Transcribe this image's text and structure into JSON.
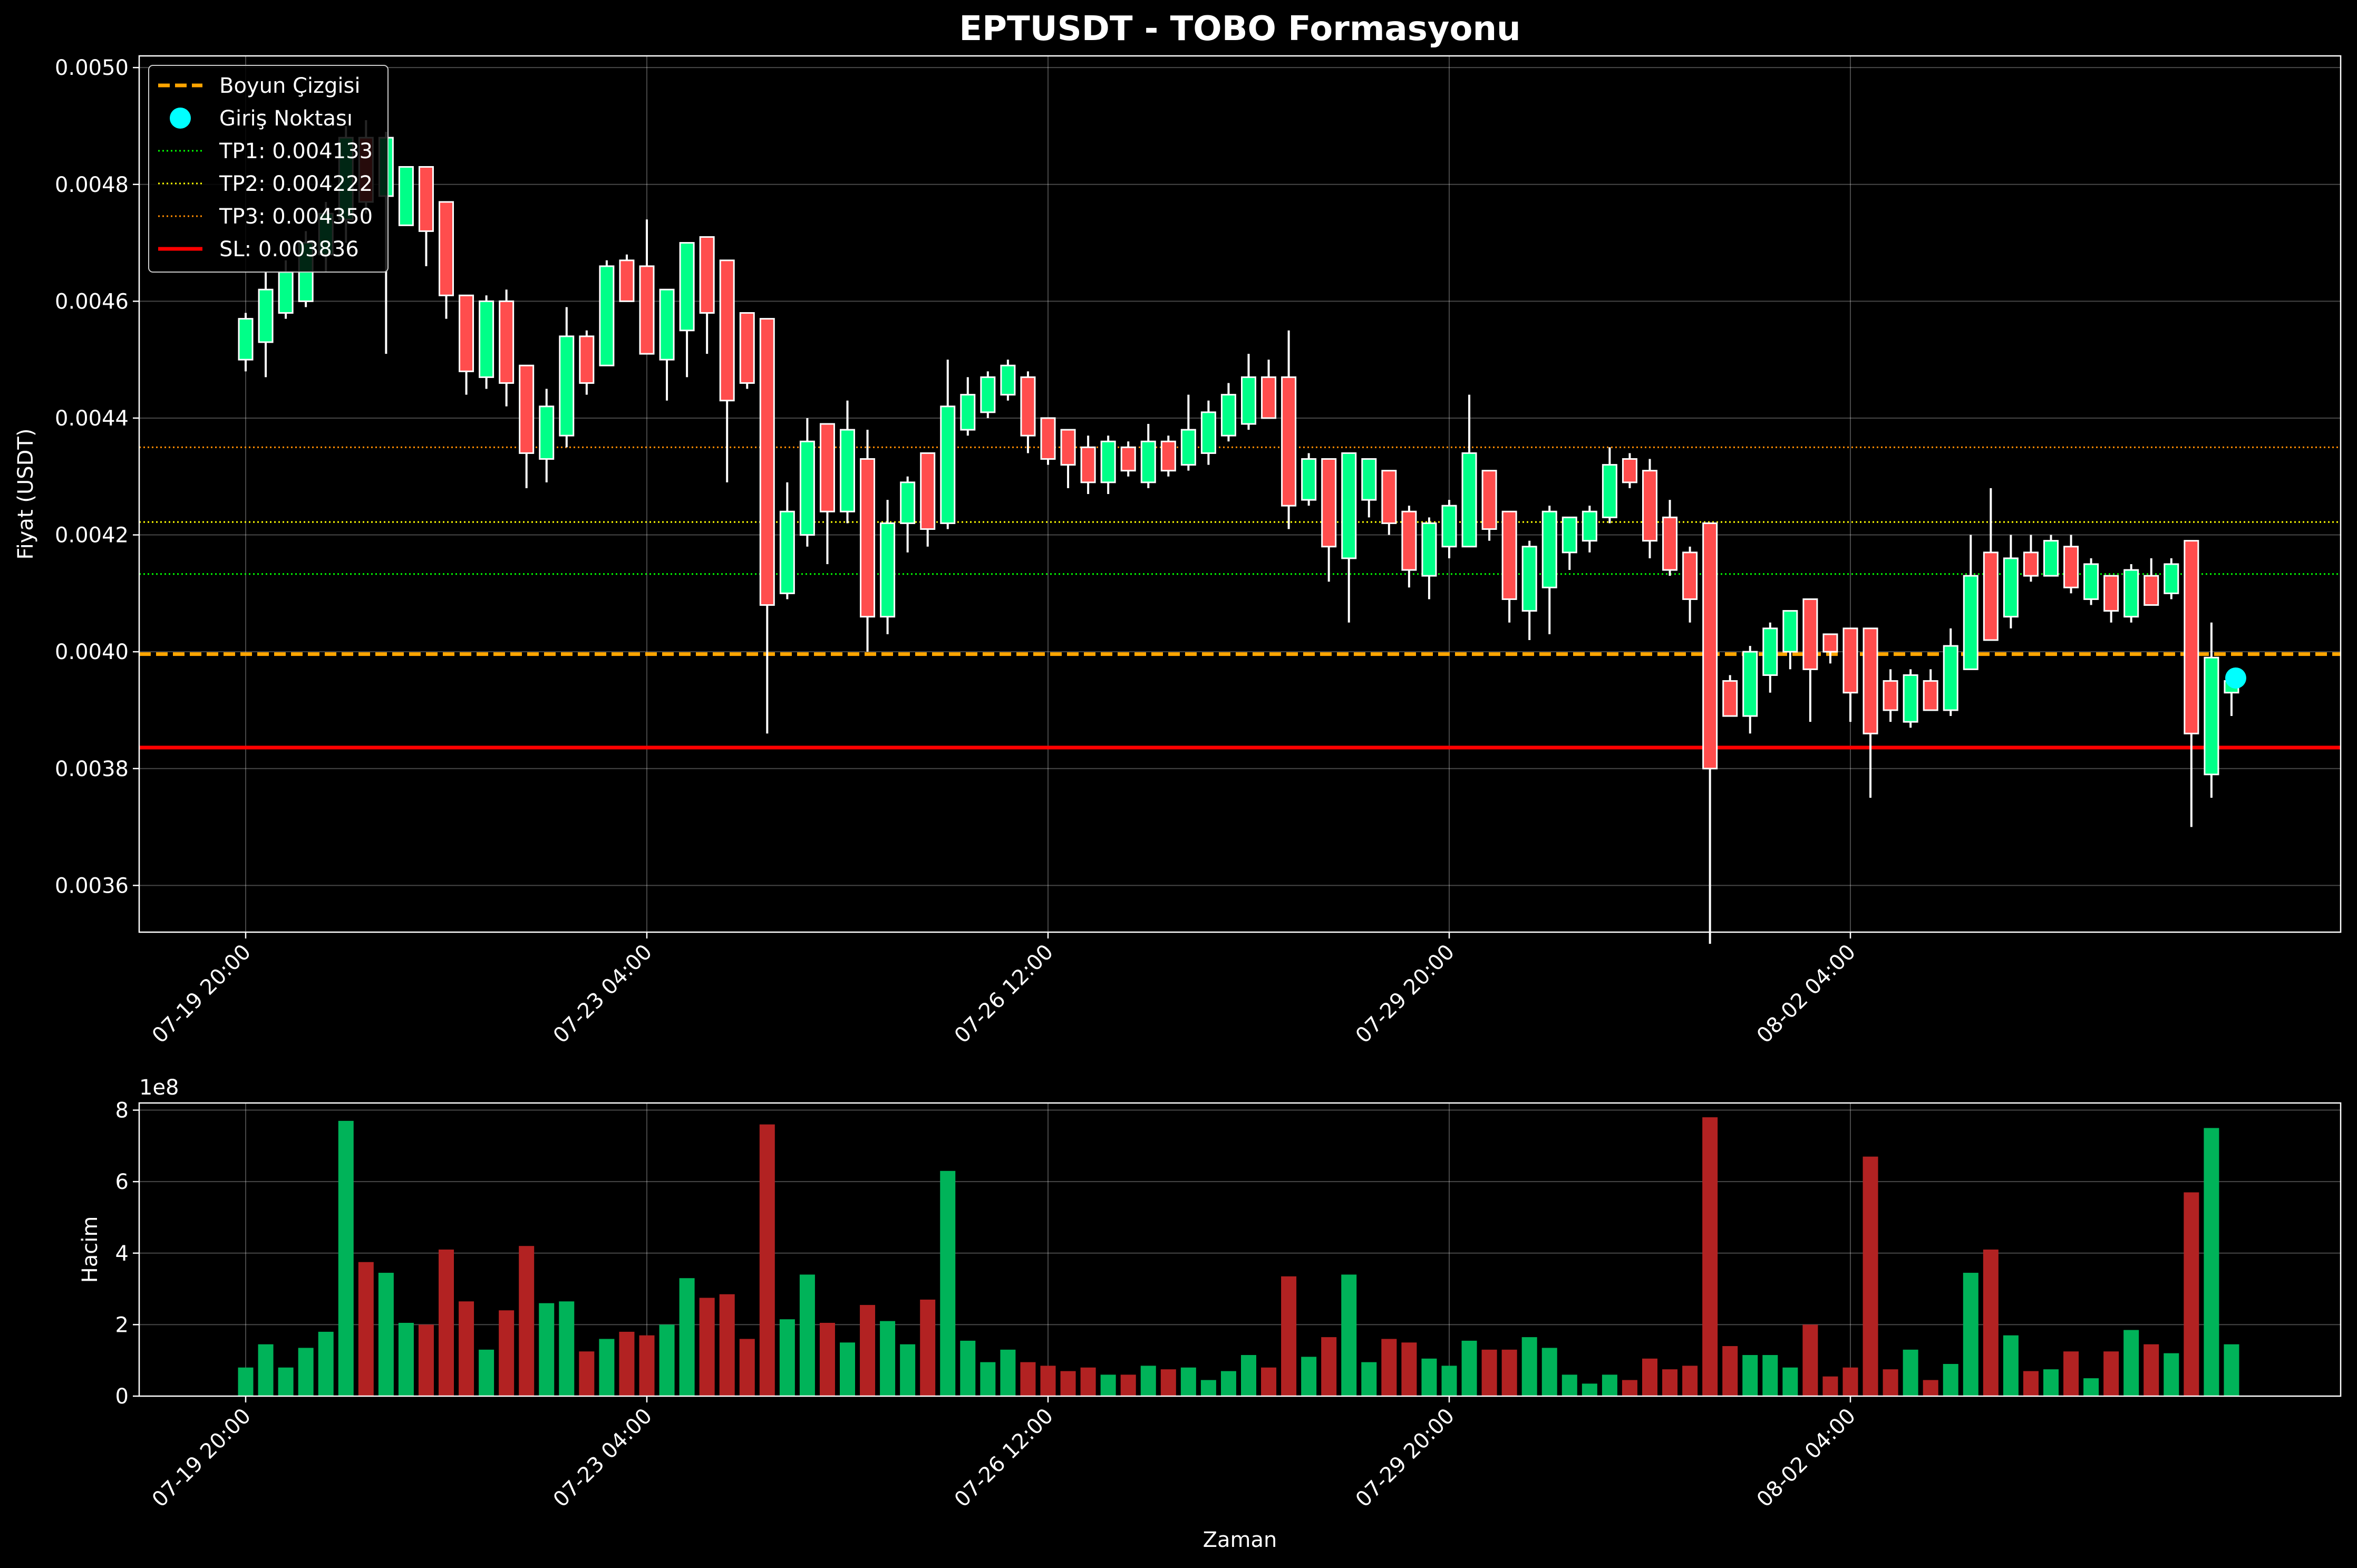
{
  "chart_data": [
    {
      "type": "candlestick",
      "title": "EPTUSDT - TOBO Formasyonu",
      "ylabel": "Fiyat (USDT)",
      "ylim": [
        0.00352,
        0.00502
      ],
      "yticks": [
        "0.0036",
        "0.0038",
        "0.0040",
        "0.0042",
        "0.0044",
        "0.0046",
        "0.0048",
        "0.0050"
      ],
      "xticks": [
        "07-19 20:00",
        "07-23 04:00",
        "07-26 12:00",
        "07-29 20:00",
        "08-02 04:00"
      ],
      "grid": true,
      "up_color": "#00ff88",
      "down_color": "#ff4d4d",
      "wick_color": "#ffffff",
      "lines": [
        {
          "name": "Boyun Çizgisi",
          "value": 0.003996,
          "style": "dashed",
          "color": "#ffa500"
        },
        {
          "name": "TP1: 0.004133",
          "value": 0.004133,
          "style": "dotted",
          "color": "#00ff00"
        },
        {
          "name": "TP2: 0.004222",
          "value": 0.004222,
          "style": "dotted",
          "color": "#ffff00"
        },
        {
          "name": "TP3: 0.004350",
          "value": 0.00435,
          "style": "dotted",
          "color": "#ff8c00"
        },
        {
          "name": "SL: 0.003836",
          "value": 0.003836,
          "style": "solid",
          "color": "#ff0000"
        }
      ],
      "entry_point": {
        "name": "Giriş Noktası",
        "index": 99,
        "value": 0.003955,
        "color": "#00ffff"
      },
      "legend_position": "upper-left",
      "candles": [
        [
          0.0045,
          0.00458,
          0.00448,
          0.00457
        ],
        [
          0.00453,
          0.00465,
          0.00447,
          0.00462
        ],
        [
          0.00458,
          0.00467,
          0.00457,
          0.00465
        ],
        [
          0.0046,
          0.00472,
          0.00459,
          0.0047
        ],
        [
          0.00468,
          0.00477,
          0.00465,
          0.00475
        ],
        [
          0.00474,
          0.0049,
          0.0047,
          0.00488
        ],
        [
          0.00488,
          0.00491,
          0.00475,
          0.00477
        ],
        [
          0.00478,
          0.00489,
          0.00451,
          0.00488
        ],
        [
          0.00473,
          0.00483,
          0.00473,
          0.00483
        ],
        [
          0.00483,
          0.00483,
          0.00466,
          0.00472
        ],
        [
          0.00477,
          0.00477,
          0.00457,
          0.00461
        ],
        [
          0.00461,
          0.00461,
          0.00444,
          0.00448
        ],
        [
          0.00447,
          0.00461,
          0.00445,
          0.0046
        ],
        [
          0.0046,
          0.00462,
          0.00442,
          0.00446
        ],
        [
          0.00449,
          0.00449,
          0.00428,
          0.00434
        ],
        [
          0.00433,
          0.00445,
          0.00429,
          0.00442
        ],
        [
          0.00437,
          0.00459,
          0.00435,
          0.00454
        ],
        [
          0.00454,
          0.00455,
          0.00444,
          0.00446
        ],
        [
          0.00449,
          0.00467,
          0.00449,
          0.00466
        ],
        [
          0.00467,
          0.00468,
          0.0046,
          0.0046
        ],
        [
          0.00466,
          0.00474,
          0.00451,
          0.00451
        ],
        [
          0.0045,
          0.00462,
          0.00443,
          0.00462
        ],
        [
          0.00455,
          0.0047,
          0.00447,
          0.0047
        ],
        [
          0.00471,
          0.00471,
          0.00451,
          0.00458
        ],
        [
          0.00467,
          0.00467,
          0.00429,
          0.00443
        ],
        [
          0.00458,
          0.00458,
          0.00445,
          0.00446
        ],
        [
          0.00457,
          0.00457,
          0.00386,
          0.00408
        ],
        [
          0.0041,
          0.00429,
          0.00409,
          0.00424
        ],
        [
          0.0042,
          0.0044,
          0.00418,
          0.00436
        ],
        [
          0.00439,
          0.00439,
          0.00415,
          0.00424
        ],
        [
          0.00424,
          0.00443,
          0.00422,
          0.00438
        ],
        [
          0.00433,
          0.00438,
          0.004,
          0.00406
        ],
        [
          0.00406,
          0.00426,
          0.00403,
          0.00422
        ],
        [
          0.00422,
          0.0043,
          0.00417,
          0.00429
        ],
        [
          0.00434,
          0.00434,
          0.00418,
          0.00421
        ],
        [
          0.00422,
          0.0045,
          0.00421,
          0.00442
        ],
        [
          0.00438,
          0.00447,
          0.00437,
          0.00444
        ],
        [
          0.00441,
          0.00448,
          0.0044,
          0.00447
        ],
        [
          0.00444,
          0.0045,
          0.00443,
          0.00449
        ],
        [
          0.00447,
          0.00448,
          0.00434,
          0.00437
        ],
        [
          0.0044,
          0.0044,
          0.00432,
          0.00433
        ],
        [
          0.00438,
          0.00438,
          0.00428,
          0.00432
        ],
        [
          0.00435,
          0.00437,
          0.00427,
          0.00429
        ],
        [
          0.00429,
          0.00437,
          0.00427,
          0.00436
        ],
        [
          0.00435,
          0.00436,
          0.0043,
          0.00431
        ],
        [
          0.00429,
          0.00439,
          0.00428,
          0.00436
        ],
        [
          0.00436,
          0.00437,
          0.0043,
          0.00431
        ],
        [
          0.00432,
          0.00444,
          0.00431,
          0.00438
        ],
        [
          0.00434,
          0.00443,
          0.00432,
          0.00441
        ],
        [
          0.00437,
          0.00446,
          0.00436,
          0.00444
        ],
        [
          0.00439,
          0.00451,
          0.00438,
          0.00447
        ],
        [
          0.00447,
          0.0045,
          0.0044,
          0.0044
        ],
        [
          0.00447,
          0.00455,
          0.00421,
          0.00425
        ],
        [
          0.00426,
          0.00434,
          0.00425,
          0.00433
        ],
        [
          0.00433,
          0.00433,
          0.00412,
          0.00418
        ],
        [
          0.00416,
          0.00434,
          0.00405,
          0.00434
        ],
        [
          0.00426,
          0.00433,
          0.00423,
          0.00433
        ],
        [
          0.00431,
          0.00431,
          0.0042,
          0.00422
        ],
        [
          0.00424,
          0.00425,
          0.00411,
          0.00414
        ],
        [
          0.00413,
          0.00423,
          0.00409,
          0.00422
        ],
        [
          0.00418,
          0.00426,
          0.00416,
          0.00425
        ],
        [
          0.00418,
          0.00444,
          0.00418,
          0.00434
        ],
        [
          0.00431,
          0.00431,
          0.00419,
          0.00421
        ],
        [
          0.00424,
          0.00424,
          0.00405,
          0.00409
        ],
        [
          0.00407,
          0.00419,
          0.00402,
          0.00418
        ],
        [
          0.00411,
          0.00425,
          0.00403,
          0.00424
        ],
        [
          0.00417,
          0.00423,
          0.00414,
          0.00423
        ],
        [
          0.00419,
          0.00425,
          0.00417,
          0.00424
        ],
        [
          0.00423,
          0.00435,
          0.00422,
          0.00432
        ],
        [
          0.00433,
          0.00434,
          0.00428,
          0.00429
        ],
        [
          0.00431,
          0.00433,
          0.00416,
          0.00419
        ],
        [
          0.00423,
          0.00426,
          0.00413,
          0.00414
        ],
        [
          0.00417,
          0.00418,
          0.00405,
          0.00409
        ],
        [
          0.00422,
          0.00422,
          0.0035,
          0.0038
        ],
        [
          0.00395,
          0.00396,
          0.00389,
          0.00389
        ],
        [
          0.00389,
          0.00401,
          0.00386,
          0.004
        ],
        [
          0.00396,
          0.00405,
          0.00393,
          0.00404
        ],
        [
          0.004,
          0.00407,
          0.00397,
          0.00407
        ],
        [
          0.00409,
          0.00409,
          0.00388,
          0.00397
        ],
        [
          0.00403,
          0.00403,
          0.00398,
          0.004
        ],
        [
          0.00404,
          0.00404,
          0.00388,
          0.00393
        ],
        [
          0.00404,
          0.00404,
          0.00375,
          0.00386
        ],
        [
          0.00395,
          0.00397,
          0.00388,
          0.0039
        ],
        [
          0.00388,
          0.00397,
          0.00387,
          0.00396
        ],
        [
          0.00395,
          0.00397,
          0.0039,
          0.0039
        ],
        [
          0.0039,
          0.00404,
          0.00389,
          0.00401
        ],
        [
          0.00397,
          0.0042,
          0.00397,
          0.00413
        ],
        [
          0.00417,
          0.00428,
          0.00402,
          0.00402
        ],
        [
          0.00406,
          0.0042,
          0.00404,
          0.00416
        ],
        [
          0.00417,
          0.0042,
          0.00412,
          0.00413
        ],
        [
          0.00413,
          0.0042,
          0.00413,
          0.00419
        ],
        [
          0.00418,
          0.0042,
          0.0041,
          0.00411
        ],
        [
          0.00409,
          0.00416,
          0.00408,
          0.00415
        ],
        [
          0.00413,
          0.00413,
          0.00405,
          0.00407
        ],
        [
          0.00406,
          0.00415,
          0.00405,
          0.00414
        ],
        [
          0.00413,
          0.00416,
          0.00408,
          0.00408
        ],
        [
          0.0041,
          0.00416,
          0.00409,
          0.00415
        ],
        [
          0.00419,
          0.00419,
          0.0037,
          0.00386
        ],
        [
          0.00379,
          0.00405,
          0.00375,
          0.00399
        ],
        [
          0.00393,
          0.00397,
          0.00389,
          0.00395
        ]
      ]
    },
    {
      "type": "bar",
      "xlabel": "Zaman",
      "ylabel": "Hacim",
      "ylim": [
        0,
        8.2
      ],
      "yticks": [
        "0",
        "2",
        "4",
        "6",
        "8"
      ],
      "offset_label": "1e8",
      "xticks": [
        "07-19 20:00",
        "07-23 04:00",
        "07-26 12:00",
        "07-29 20:00",
        "08-02 04:00"
      ],
      "grid": true,
      "up_color": "#00b359",
      "down_color": "#b22222",
      "values": [
        0.8,
        1.45,
        0.8,
        1.35,
        1.8,
        7.7,
        3.75,
        3.45,
        2.05,
        2.0,
        4.1,
        2.65,
        1.3,
        2.4,
        4.2,
        2.6,
        2.65,
        1.25,
        1.6,
        1.8,
        1.7,
        2.0,
        3.3,
        2.75,
        2.85,
        1.6,
        7.6,
        2.15,
        3.4,
        2.05,
        1.5,
        2.55,
        2.1,
        1.45,
        2.7,
        6.3,
        1.55,
        0.95,
        1.3,
        0.95,
        0.85,
        0.7,
        0.8,
        0.6,
        0.6,
        0.85,
        0.75,
        0.8,
        0.45,
        0.7,
        1.15,
        0.8,
        3.35,
        1.1,
        1.65,
        3.4,
        0.95,
        1.6,
        1.5,
        1.05,
        0.85,
        1.55,
        1.3,
        1.3,
        1.65,
        1.35,
        0.6,
        0.35,
        0.6,
        0.45,
        1.05,
        0.75,
        0.85,
        7.8,
        1.4,
        1.15,
        1.15,
        0.8,
        2.0,
        0.55,
        0.8,
        6.7,
        0.75,
        1.3,
        0.45,
        0.9,
        3.45,
        4.1,
        1.7,
        0.7,
        0.75,
        1.25,
        0.5,
        1.25,
        1.85,
        1.45,
        1.2,
        5.7,
        7.5,
        1.45
      ]
    }
  ]
}
